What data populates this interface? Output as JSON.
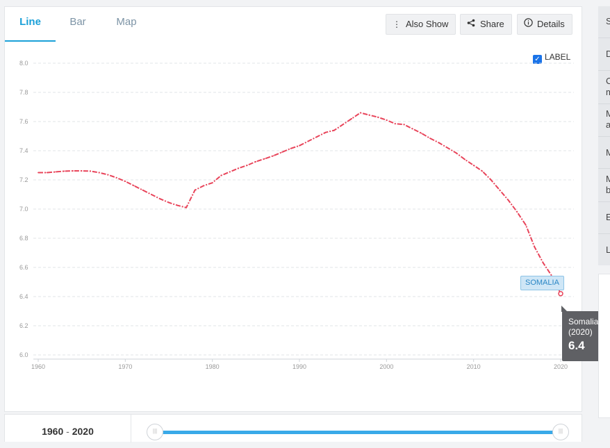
{
  "tabs": [
    {
      "label": "Line",
      "active": true
    },
    {
      "label": "Bar",
      "active": false
    },
    {
      "label": "Map",
      "active": false
    }
  ],
  "toolbar": {
    "also_show": "Also Show",
    "share": "Share",
    "details": "Details"
  },
  "label_checkbox": {
    "label": "LABEL",
    "checked": true
  },
  "series_label": "SOMALIA",
  "tooltip": {
    "country": "Somalia",
    "year": "(2020)",
    "value": "6.4"
  },
  "range": {
    "start": "1960",
    "sep": "-",
    "end": "2020"
  },
  "side_menu_letters": [
    "S",
    "D",
    "C",
    "m",
    "M",
    "a",
    "M",
    "M",
    "b",
    "E",
    "L"
  ],
  "colors": {
    "line": "#e8445a",
    "accent": "#1aa0d8",
    "slider": "#39a9e8"
  },
  "chart_data": {
    "type": "line",
    "title": "",
    "xlabel": "",
    "ylabel": "",
    "xlim": [
      1960,
      2020
    ],
    "ylim": [
      6.0,
      8.0
    ],
    "yticks": [
      "6.0",
      "6.2",
      "6.4",
      "6.6",
      "6.8",
      "7.0",
      "7.2",
      "7.4",
      "7.6",
      "7.8",
      "8.0"
    ],
    "xticks": [
      "1960",
      "1970",
      "1980",
      "1990",
      "2000",
      "2010",
      "2020"
    ],
    "grid": true,
    "series": [
      {
        "name": "SOMALIA",
        "color": "#e8445a",
        "x": [
          1960,
          1961,
          1962,
          1963,
          1964,
          1965,
          1966,
          1967,
          1968,
          1969,
          1970,
          1971,
          1972,
          1973,
          1974,
          1975,
          1976,
          1977,
          1978,
          1979,
          1980,
          1981,
          1982,
          1983,
          1984,
          1985,
          1986,
          1987,
          1988,
          1989,
          1990,
          1991,
          1992,
          1993,
          1994,
          1995,
          1996,
          1997,
          1998,
          1999,
          2000,
          2001,
          2002,
          2003,
          2004,
          2005,
          2006,
          2007,
          2008,
          2009,
          2010,
          2011,
          2012,
          2013,
          2014,
          2015,
          2016,
          2017,
          2018,
          2019,
          2020
        ],
        "values": [
          7.25,
          7.25,
          7.255,
          7.26,
          7.262,
          7.262,
          7.26,
          7.25,
          7.235,
          7.215,
          7.19,
          7.16,
          7.13,
          7.1,
          7.07,
          7.045,
          7.025,
          7.01,
          7.13,
          7.16,
          7.18,
          7.23,
          7.255,
          7.28,
          7.3,
          7.325,
          7.345,
          7.365,
          7.39,
          7.415,
          7.435,
          7.465,
          7.495,
          7.525,
          7.54,
          7.58,
          7.62,
          7.66,
          7.645,
          7.63,
          7.61,
          7.585,
          7.58,
          7.55,
          7.52,
          7.485,
          7.455,
          7.42,
          7.385,
          7.34,
          7.3,
          7.26,
          7.2,
          7.13,
          7.06,
          6.98,
          6.89,
          6.74,
          6.63,
          6.54,
          6.42
        ]
      }
    ]
  }
}
